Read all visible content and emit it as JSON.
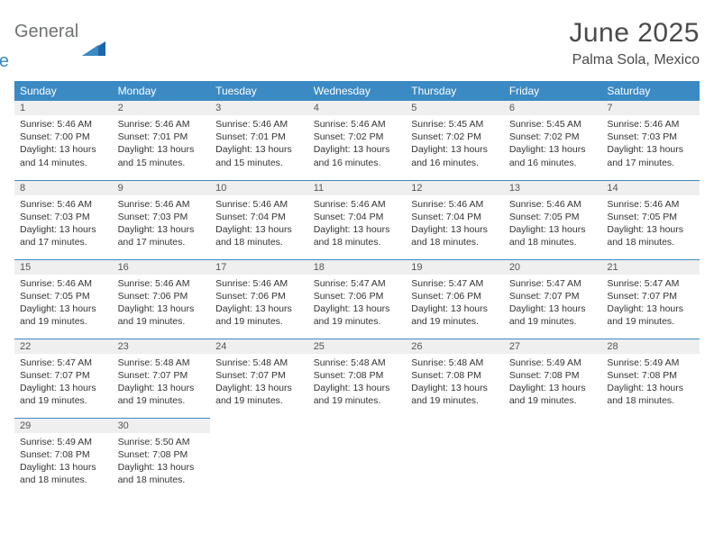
{
  "logo": {
    "general": "General",
    "blue": "Blue"
  },
  "header": {
    "title": "June 2025",
    "location": "Palma Sola, Mexico"
  },
  "colors": {
    "header_bg": "#3b8ac4",
    "logo_gray": "#6f7274",
    "logo_blue": "#3b8ac4"
  },
  "weekdays": [
    "Sunday",
    "Monday",
    "Tuesday",
    "Wednesday",
    "Thursday",
    "Friday",
    "Saturday"
  ],
  "days": [
    {
      "n": 1,
      "sunrise": "5:46 AM",
      "sunset": "7:00 PM",
      "dl_h": 13,
      "dl_m": 14
    },
    {
      "n": 2,
      "sunrise": "5:46 AM",
      "sunset": "7:01 PM",
      "dl_h": 13,
      "dl_m": 15
    },
    {
      "n": 3,
      "sunrise": "5:46 AM",
      "sunset": "7:01 PM",
      "dl_h": 13,
      "dl_m": 15
    },
    {
      "n": 4,
      "sunrise": "5:46 AM",
      "sunset": "7:02 PM",
      "dl_h": 13,
      "dl_m": 16
    },
    {
      "n": 5,
      "sunrise": "5:45 AM",
      "sunset": "7:02 PM",
      "dl_h": 13,
      "dl_m": 16
    },
    {
      "n": 6,
      "sunrise": "5:45 AM",
      "sunset": "7:02 PM",
      "dl_h": 13,
      "dl_m": 16
    },
    {
      "n": 7,
      "sunrise": "5:46 AM",
      "sunset": "7:03 PM",
      "dl_h": 13,
      "dl_m": 17
    },
    {
      "n": 8,
      "sunrise": "5:46 AM",
      "sunset": "7:03 PM",
      "dl_h": 13,
      "dl_m": 17
    },
    {
      "n": 9,
      "sunrise": "5:46 AM",
      "sunset": "7:03 PM",
      "dl_h": 13,
      "dl_m": 17
    },
    {
      "n": 10,
      "sunrise": "5:46 AM",
      "sunset": "7:04 PM",
      "dl_h": 13,
      "dl_m": 18
    },
    {
      "n": 11,
      "sunrise": "5:46 AM",
      "sunset": "7:04 PM",
      "dl_h": 13,
      "dl_m": 18
    },
    {
      "n": 12,
      "sunrise": "5:46 AM",
      "sunset": "7:04 PM",
      "dl_h": 13,
      "dl_m": 18
    },
    {
      "n": 13,
      "sunrise": "5:46 AM",
      "sunset": "7:05 PM",
      "dl_h": 13,
      "dl_m": 18
    },
    {
      "n": 14,
      "sunrise": "5:46 AM",
      "sunset": "7:05 PM",
      "dl_h": 13,
      "dl_m": 18
    },
    {
      "n": 15,
      "sunrise": "5:46 AM",
      "sunset": "7:05 PM",
      "dl_h": 13,
      "dl_m": 19
    },
    {
      "n": 16,
      "sunrise": "5:46 AM",
      "sunset": "7:06 PM",
      "dl_h": 13,
      "dl_m": 19
    },
    {
      "n": 17,
      "sunrise": "5:46 AM",
      "sunset": "7:06 PM",
      "dl_h": 13,
      "dl_m": 19
    },
    {
      "n": 18,
      "sunrise": "5:47 AM",
      "sunset": "7:06 PM",
      "dl_h": 13,
      "dl_m": 19
    },
    {
      "n": 19,
      "sunrise": "5:47 AM",
      "sunset": "7:06 PM",
      "dl_h": 13,
      "dl_m": 19
    },
    {
      "n": 20,
      "sunrise": "5:47 AM",
      "sunset": "7:07 PM",
      "dl_h": 13,
      "dl_m": 19
    },
    {
      "n": 21,
      "sunrise": "5:47 AM",
      "sunset": "7:07 PM",
      "dl_h": 13,
      "dl_m": 19
    },
    {
      "n": 22,
      "sunrise": "5:47 AM",
      "sunset": "7:07 PM",
      "dl_h": 13,
      "dl_m": 19
    },
    {
      "n": 23,
      "sunrise": "5:48 AM",
      "sunset": "7:07 PM",
      "dl_h": 13,
      "dl_m": 19
    },
    {
      "n": 24,
      "sunrise": "5:48 AM",
      "sunset": "7:07 PM",
      "dl_h": 13,
      "dl_m": 19
    },
    {
      "n": 25,
      "sunrise": "5:48 AM",
      "sunset": "7:08 PM",
      "dl_h": 13,
      "dl_m": 19
    },
    {
      "n": 26,
      "sunrise": "5:48 AM",
      "sunset": "7:08 PM",
      "dl_h": 13,
      "dl_m": 19
    },
    {
      "n": 27,
      "sunrise": "5:49 AM",
      "sunset": "7:08 PM",
      "dl_h": 13,
      "dl_m": 19
    },
    {
      "n": 28,
      "sunrise": "5:49 AM",
      "sunset": "7:08 PM",
      "dl_h": 13,
      "dl_m": 18
    },
    {
      "n": 29,
      "sunrise": "5:49 AM",
      "sunset": "7:08 PM",
      "dl_h": 13,
      "dl_m": 18
    },
    {
      "n": 30,
      "sunrise": "5:50 AM",
      "sunset": "7:08 PM",
      "dl_h": 13,
      "dl_m": 18
    }
  ],
  "labels": {
    "sunrise": "Sunrise:",
    "sunset": "Sunset:",
    "daylight": "Daylight:",
    "hours": "hours",
    "and": "and",
    "minutes": "minutes."
  },
  "start_weekday": 0
}
